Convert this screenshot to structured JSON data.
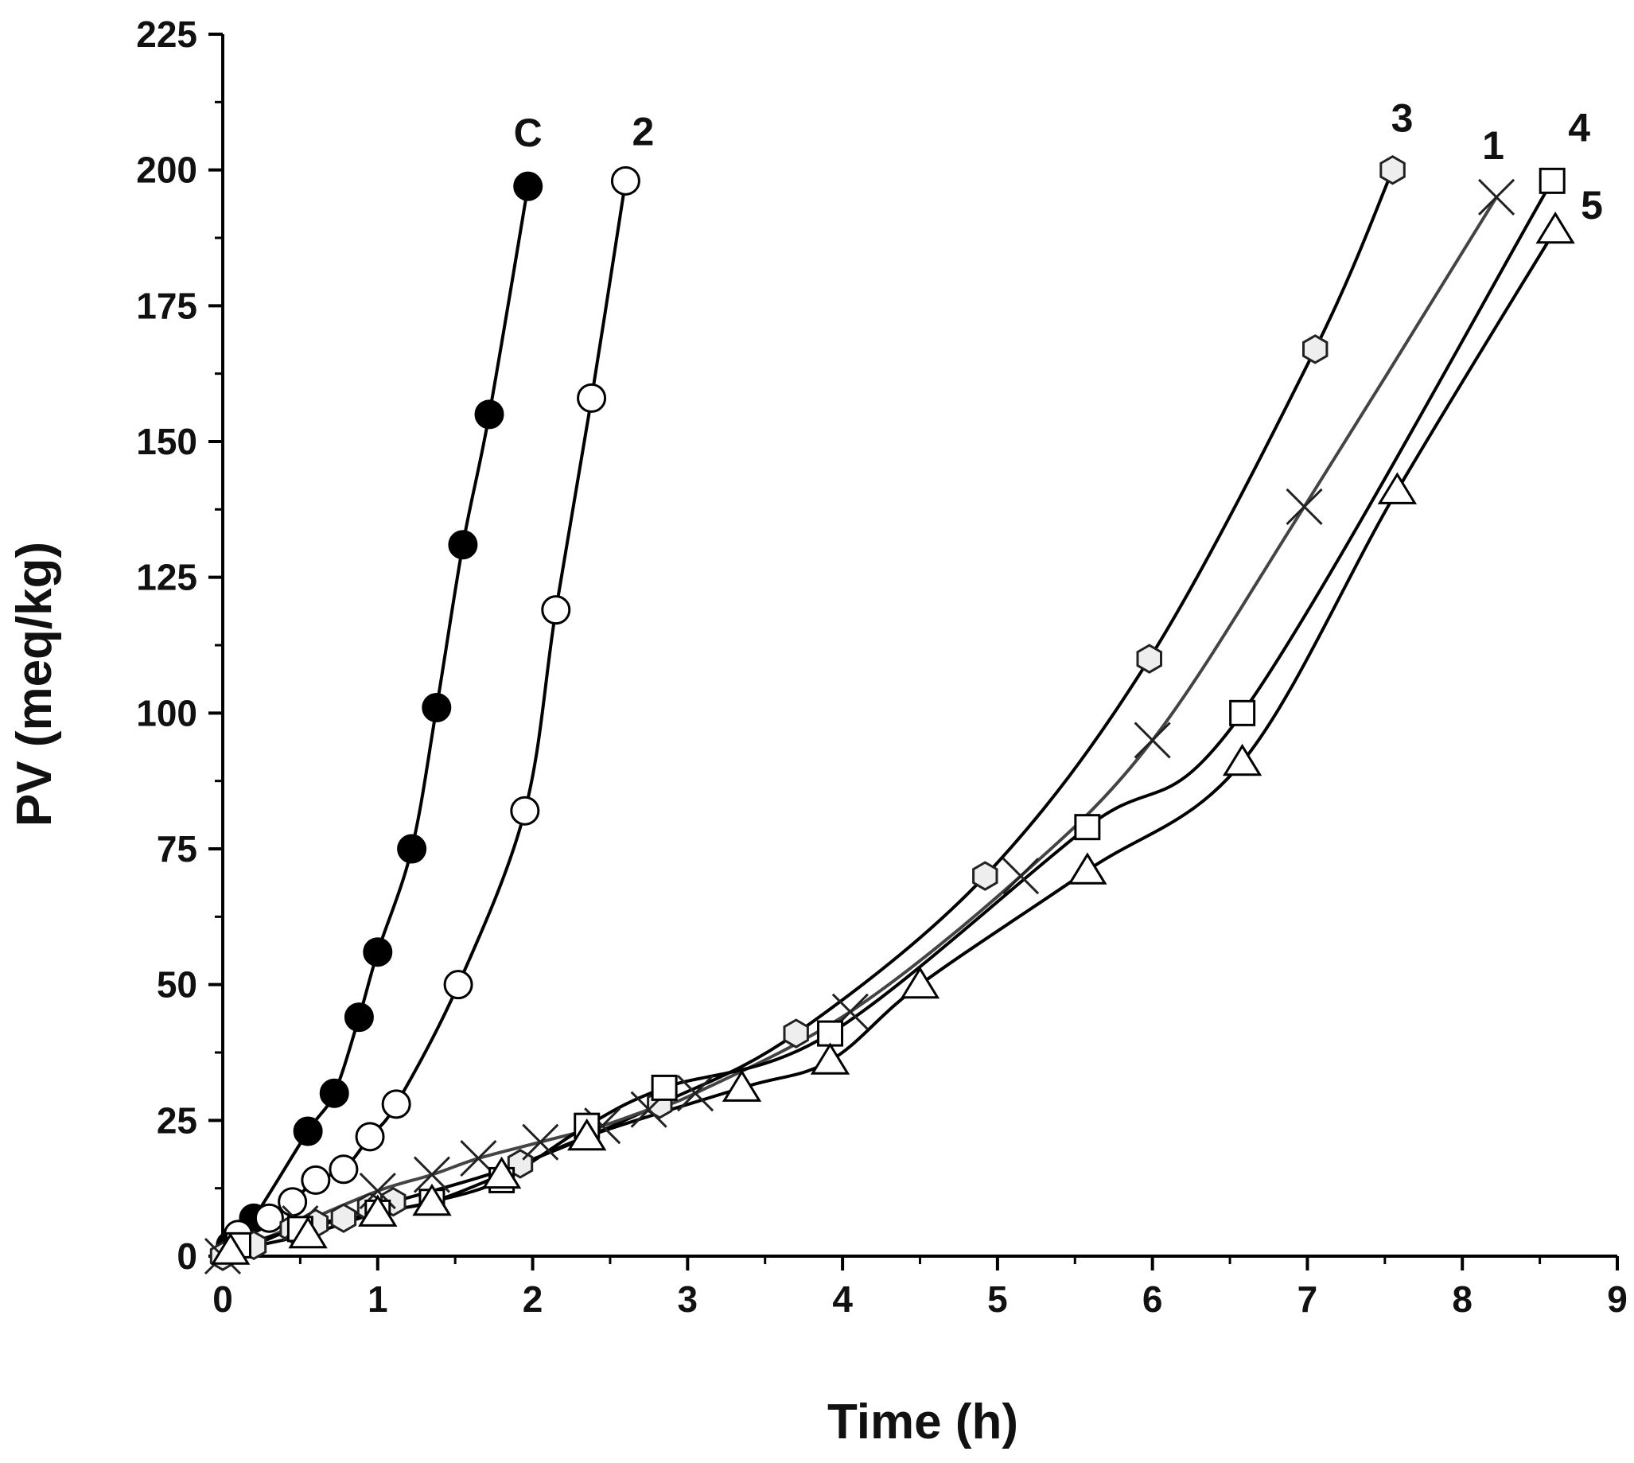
{
  "chart_data": {
    "type": "line",
    "title": "",
    "xlabel": "Time (h)",
    "ylabel": "PV (meq/kg)",
    "xlim": [
      0,
      9
    ],
    "ylim": [
      0,
      225
    ],
    "xticks": [
      0,
      1,
      2,
      3,
      4,
      5,
      6,
      7,
      8,
      9
    ],
    "yticks": [
      0,
      25,
      50,
      75,
      100,
      125,
      150,
      175,
      200,
      225
    ],
    "grid": false,
    "legend": "labels at line ends",
    "series": [
      {
        "name": "C",
        "marker": "filled-circle",
        "color": "#000000",
        "x": [
          0.05,
          0.2,
          0.55,
          0.72,
          0.88,
          1.0,
          1.22,
          1.38,
          1.55,
          1.72,
          1.97
        ],
        "y": [
          2,
          7,
          23,
          30,
          44,
          56,
          75,
          101,
          131,
          155,
          197
        ]
      },
      {
        "name": "2",
        "marker": "open-circle",
        "color": "#000000",
        "x": [
          0.1,
          0.3,
          0.45,
          0.6,
          0.78,
          0.95,
          1.12,
          1.52,
          1.95,
          2.15,
          2.38,
          2.6
        ],
        "y": [
          4,
          7,
          10,
          14,
          16,
          22,
          28,
          50,
          82,
          119,
          158,
          198
        ]
      },
      {
        "name": "3",
        "marker": "open-hexagon",
        "color": "#000000",
        "x": [
          0.0,
          0.2,
          0.45,
          0.6,
          0.78,
          0.95,
          1.1,
          1.92,
          2.82,
          3.7,
          4.92,
          5.98,
          7.05,
          7.55
        ],
        "y": [
          0,
          2,
          5,
          6,
          7,
          9,
          10,
          17,
          28,
          41,
          70,
          110,
          167,
          200
        ]
      },
      {
        "name": "1",
        "marker": "cross",
        "color": "#444444",
        "x": [
          0.0,
          0.5,
          1.0,
          1.35,
          1.65,
          2.05,
          2.45,
          2.75,
          3.05,
          4.05,
          5.15,
          6.0,
          6.98,
          8.22
        ],
        "y": [
          0,
          6,
          12,
          15,
          18,
          21,
          24,
          27,
          30,
          45,
          70,
          95,
          138,
          195
        ]
      },
      {
        "name": "4",
        "marker": "open-square",
        "color": "#000000",
        "x": [
          0.1,
          0.5,
          1.0,
          1.35,
          1.8,
          2.35,
          2.85,
          3.92,
          5.58,
          6.58,
          8.58
        ],
        "y": [
          2,
          5,
          8,
          10,
          14,
          24,
          31,
          41,
          79,
          100,
          198
        ]
      },
      {
        "name": "5",
        "marker": "open-triangle",
        "color": "#000000",
        "x": [
          0.05,
          0.55,
          1.0,
          1.35,
          1.8,
          2.35,
          3.35,
          3.92,
          4.5,
          5.58,
          6.58,
          7.58,
          8.6
        ],
        "y": [
          1,
          4,
          8,
          10,
          15,
          22,
          31,
          36,
          50,
          71,
          91,
          141,
          189
        ]
      }
    ]
  }
}
